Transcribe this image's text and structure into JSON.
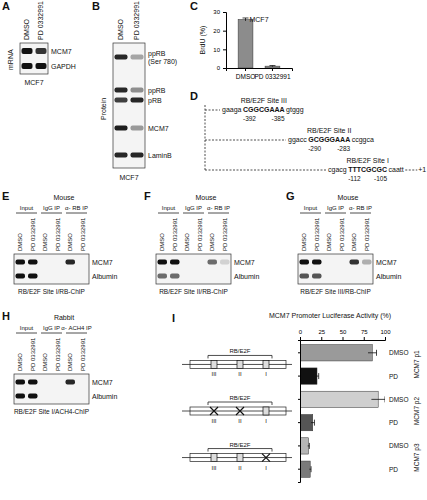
{
  "panels": {
    "A": {
      "letter": "A",
      "row_label": "mRNA",
      "cell_line": "MCF7",
      "lanes": [
        "DMSO",
        "PD 0332991"
      ],
      "rows": [
        {
          "label": "MCM7",
          "bands": [
            1,
            0.85
          ]
        },
        {
          "label": "GAPDH",
          "bands": [
            1,
            1
          ]
        }
      ]
    },
    "B": {
      "letter": "B",
      "row_label": "Protein",
      "cell_line": "MCF7",
      "lanes": [
        "DMSO",
        "PD 0332991"
      ],
      "rows": [
        {
          "label": "ppRB (Ser 780)",
          "bands": [
            0.9,
            0.35
          ]
        },
        {
          "label": "ppRB",
          "bands": [
            0.9,
            0.45
          ]
        },
        {
          "label": "pRB",
          "bands": [
            0.8,
            0.9
          ]
        },
        {
          "label": "MCM7",
          "bands": [
            0.95,
            0.4
          ]
        },
        {
          "label": "LaminB",
          "bands": [
            0.9,
            0.9
          ]
        }
      ]
    },
    "C": {
      "letter": "C"
    },
    "D": {
      "letter": "D",
      "tss": "+1",
      "sites": [
        {
          "name": "RB/E2F Site III",
          "left": "gaaga",
          "core": "CGGCGAAA",
          "right": "gtggg",
          "start": -392,
          "end": -385
        },
        {
          "name": "RB/E2F Site II",
          "left": "ggacc",
          "core": "GCGGGAAA",
          "right": "ccggca",
          "start": -290,
          "end": -283
        },
        {
          "name": "RB/E2F Site I",
          "left": "cgacg",
          "core": "TTTCGCGC",
          "right": "caatt",
          "start": -112,
          "end": -105
        }
      ]
    },
    "E": {
      "letter": "E",
      "species": "Mouse",
      "groups": [
        "Input",
        "IgG IP",
        "α- RB IP"
      ],
      "lanes": [
        "DMSO",
        "PD 0332991",
        "DMSO",
        "PD 0332991",
        "DMSO",
        "PD 0332991"
      ],
      "rows": [
        {
          "label": "MCM7",
          "bands": [
            1,
            1,
            0,
            0,
            0.9,
            0
          ]
        },
        {
          "label": "Albumin",
          "bands": [
            1,
            1,
            0,
            0,
            0,
            0
          ]
        }
      ],
      "caption": "RB/E2F Site I/RB-ChIP"
    },
    "F": {
      "letter": "F",
      "species": "Mouse",
      "groups": [
        "Input",
        "IgG IP",
        "α- RB IP"
      ],
      "lanes": [
        "DMSO",
        "PD 0332991",
        "DMSO",
        "PD 0332991",
        "DMSO",
        "PD 0332991"
      ],
      "rows": [
        {
          "label": "MCM7",
          "bands": [
            1,
            1,
            0,
            0,
            0.6,
            0.15
          ]
        },
        {
          "label": "Albumin",
          "bands": [
            0.6,
            0.6,
            0,
            0,
            0,
            0
          ]
        }
      ],
      "caption": "RB/E2F Site II/RB-ChIP"
    },
    "G": {
      "letter": "G",
      "species": "Mouse",
      "groups": [
        "Input",
        "IgG IP",
        "α- RB IP"
      ],
      "lanes": [
        "DMSO",
        "PD 0332991",
        "DMSO",
        "PD 0332991",
        "DMSO",
        "PD 0332991"
      ],
      "rows": [
        {
          "label": "MCM7",
          "bands": [
            1,
            1,
            0,
            0,
            0.85,
            0.3
          ]
        },
        {
          "label": "Albumin",
          "bands": [
            0.7,
            0.7,
            0,
            0,
            0,
            0
          ]
        }
      ],
      "caption": "RB/E2F Site III/RB-ChIP"
    },
    "H": {
      "letter": "H",
      "species": "Rabbit",
      "groups": [
        "Input",
        "IgG IP",
        "α- ACH4 IP"
      ],
      "lanes": [
        "DMSO",
        "PD 0332991",
        "DMSO",
        "PD 0332991",
        "DMSO",
        "PD 0332991"
      ],
      "rows": [
        {
          "label": "MCM7",
          "bands": [
            1,
            1,
            0,
            0,
            0.9,
            0
          ]
        },
        {
          "label": "Albumin",
          "bands": [
            1,
            1,
            0,
            0,
            0,
            0
          ]
        }
      ],
      "caption": "RB/E2F Site I/ACH4-ChIP"
    },
    "I": {
      "letter": "I",
      "region_label": "RB/E2F",
      "site_names": [
        "III",
        "II",
        "I"
      ],
      "constructs": [
        {
          "name": "MCM7 p1",
          "mutated": [
            false,
            false,
            false
          ]
        },
        {
          "name": "MCM7 p2",
          "mutated": [
            true,
            true,
            false
          ]
        },
        {
          "name": "MCM7 p3",
          "mutated": [
            false,
            false,
            true
          ]
        }
      ]
    }
  },
  "chart_data": [
    {
      "type": "bar",
      "title": "MCF7",
      "categories": [
        "DMSO",
        "PD 0332991"
      ],
      "values": [
        26,
        1
      ],
      "errors": [
        0.8,
        0.3
      ],
      "ylabel": "BrdU (%)",
      "ylim": [
        0,
        30
      ],
      "yticks": [
        0,
        10,
        20,
        30
      ],
      "color": "#8c8c8c"
    },
    {
      "type": "bar",
      "orientation": "horizontal",
      "title": "MCM7 Promoter Luciferase Activity (%)",
      "categories": [
        "DMSO",
        "PD",
        "DMSO",
        "PD",
        "DMSO",
        "PD"
      ],
      "values": [
        85,
        20,
        92,
        15,
        10,
        12
      ],
      "errors": [
        5,
        2,
        8,
        2,
        1,
        1
      ],
      "colors": [
        "#9a9a9a",
        "#111111",
        "#cfcfcf",
        "#555555",
        "#b5b5b5",
        "#7a7a7a"
      ],
      "xlim": [
        0,
        100
      ],
      "xticks": [
        0,
        25,
        50,
        75,
        100
      ]
    }
  ]
}
